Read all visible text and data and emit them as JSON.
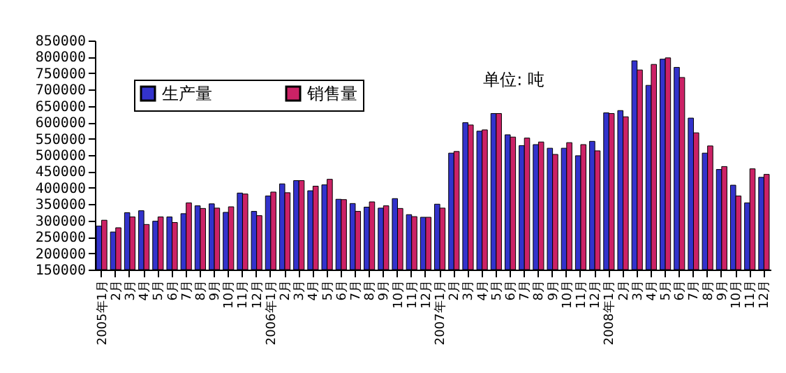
{
  "chart_data": {
    "type": "bar",
    "categories": [
      "2005年1月",
      "2月",
      "3月",
      "4月",
      "5月",
      "6月",
      "7月",
      "8月",
      "9月",
      "10月",
      "11月",
      "12月",
      "2006年1月",
      "2月",
      "3月",
      "4月",
      "5月",
      "6月",
      "7月",
      "8月",
      "9月",
      "10月",
      "11月",
      "12月",
      "2007年1月",
      "2月",
      "3月",
      "4月",
      "5月",
      "6月",
      "7月",
      "8月",
      "9月",
      "10月",
      "11月",
      "12月",
      "2008年1月",
      "2月",
      "3月",
      "4月",
      "5月",
      "6月",
      "7月",
      "8月",
      "9月",
      "10月",
      "11月",
      "12月"
    ],
    "series": [
      {
        "name": "生产量",
        "color": "#3333cc",
        "values": [
          283000,
          265000,
          324000,
          330000,
          298000,
          311000,
          321000,
          345000,
          351000,
          325000,
          384000,
          328000,
          375000,
          412000,
          422000,
          391000,
          409000,
          365000,
          352000,
          341000,
          338000,
          367000,
          318000,
          310000,
          350000,
          506000,
          599000,
          573000,
          627000,
          562000,
          529000,
          532000,
          521000,
          521000,
          498000,
          542000,
          629000,
          636000,
          788000,
          713000,
          793000,
          768000,
          613000,
          506000,
          456000,
          408000,
          354000,
          432000
        ]
      },
      {
        "name": "销售量",
        "color": "#cc2266",
        "values": [
          301000,
          278000,
          311000,
          288000,
          311000,
          294000,
          354000,
          337000,
          338000,
          342000,
          381000,
          315000,
          387000,
          385000,
          422000,
          405000,
          426000,
          364000,
          328000,
          357000,
          345000,
          337000,
          312000,
          310000,
          338000,
          511000,
          592000,
          577000,
          627000,
          555000,
          552000,
          540000,
          502000,
          538000,
          532000,
          513000,
          627000,
          617000,
          760000,
          777000,
          797000,
          737000,
          568000,
          528000,
          465000,
          375000,
          458000,
          441000
        ]
      }
    ],
    "ylim": [
      150000,
      850000
    ],
    "yticks": [
      150000,
      200000,
      250000,
      300000,
      350000,
      400000,
      450000,
      500000,
      550000,
      600000,
      650000,
      700000,
      750000,
      800000,
      850000
    ],
    "legend": "top left",
    "annotations": [
      "单位: 吨"
    ]
  }
}
